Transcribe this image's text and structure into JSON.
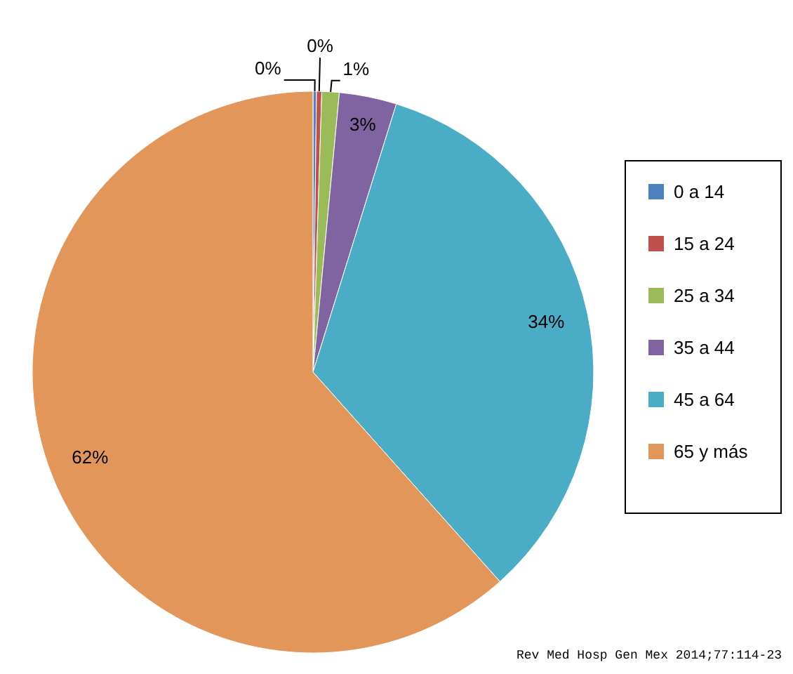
{
  "chart_data": {
    "type": "pie",
    "categories": [
      "0 a 14",
      "15 a 24",
      "25 a 34",
      "35 a 44",
      "45 a 64",
      "65 y más"
    ],
    "values": [
      0.2,
      0.3,
      1.0,
      3.3,
      33.6,
      61.6
    ],
    "value_labels": [
      "0%",
      "0%",
      "1%",
      "3%",
      "34%",
      "62%"
    ],
    "colors": [
      "#4f81bd",
      "#c0504d",
      "#9bbb59",
      "#8064a2",
      "#4bacc6",
      "#e3965a"
    ],
    "legend": "right",
    "annotations": [
      "Rev Med Hosp Gen Mex 2014;77:114-23"
    ]
  }
}
